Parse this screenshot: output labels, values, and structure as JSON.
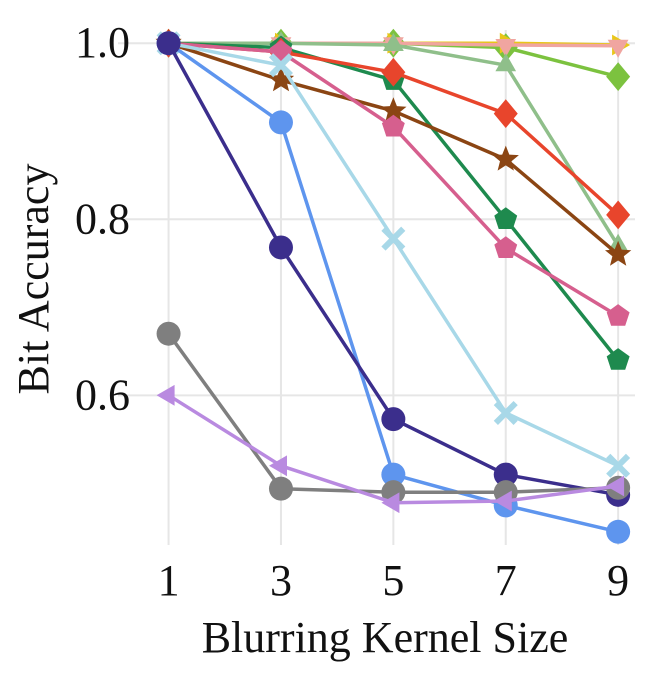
{
  "chart_data": {
    "type": "line",
    "xlabel": "Blurring Kernel Size",
    "ylabel": "Bit Accuracy",
    "x": [
      1,
      3,
      5,
      7,
      9
    ],
    "xticks": [
      "1",
      "3",
      "5",
      "7",
      "9"
    ],
    "yticks": [
      "0.6",
      "0.8",
      "1.0"
    ],
    "yticks_values": [
      0.6,
      0.8,
      1.0
    ],
    "xlim": [
      0.1,
      9.3
    ],
    "ylim": [
      0.43,
      1.015
    ],
    "grid": true,
    "series": [
      {
        "color": "#7cc23f",
        "marker": "diamond",
        "values": [
          1.0,
          1.0,
          1.0,
          0.995,
          0.962
        ]
      },
      {
        "color": "#e8c619",
        "marker": "triangle-right",
        "values": [
          1.0,
          1.0,
          1.0,
          1.0,
          0.998
        ]
      },
      {
        "color": "#f0a5a0",
        "marker": "triangle-down",
        "values": [
          1.0,
          1.0,
          1.0,
          0.998,
          0.997
        ]
      },
      {
        "color": "#8fbf8a",
        "marker": "triangle-up",
        "values": [
          1.0,
          1.0,
          0.998,
          0.975,
          0.77
        ]
      },
      {
        "color": "#1e8a4e",
        "marker": "pentagon",
        "values": [
          1.0,
          0.995,
          0.958,
          0.8,
          0.64
        ]
      },
      {
        "color": "#e8452c",
        "marker": "diamond",
        "values": [
          1.0,
          0.99,
          0.967,
          0.92,
          0.805
        ]
      },
      {
        "color": "#8b4513",
        "marker": "star",
        "values": [
          1.0,
          0.958,
          0.923,
          0.868,
          0.76
        ]
      },
      {
        "color": "#d65f8e",
        "marker": "pentagon",
        "values": [
          1.0,
          0.99,
          0.905,
          0.767,
          0.69
        ]
      },
      {
        "color": "#a8d8e8",
        "marker": "x",
        "values": [
          1.0,
          0.975,
          0.778,
          0.58,
          0.52
        ]
      },
      {
        "color": "#5e95ee",
        "marker": "circle",
        "values": [
          1.0,
          0.91,
          0.51,
          0.475,
          0.445
        ]
      },
      {
        "color": "#3b2e8c",
        "marker": "circle",
        "values": [
          1.0,
          0.768,
          0.573,
          0.51,
          0.487
        ]
      },
      {
        "color": "#7f7f7f",
        "marker": "circle",
        "values": [
          0.67,
          0.494,
          0.49,
          0.49,
          0.495
        ]
      },
      {
        "color": "#b98ae0",
        "marker": "triangle-left",
        "values": [
          0.6,
          0.52,
          0.478,
          0.48,
          0.497
        ]
      }
    ]
  }
}
